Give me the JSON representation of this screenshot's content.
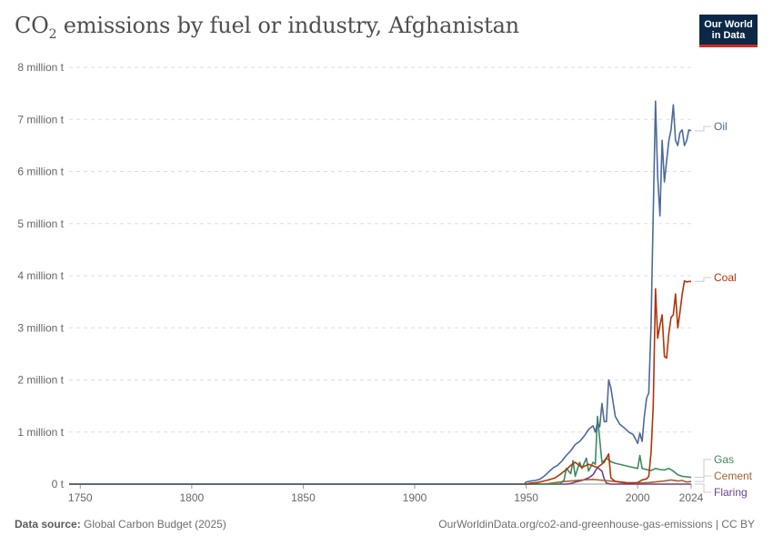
{
  "header": {
    "title_main": "CO",
    "title_sub": "2",
    "title_rest": " emissions by fuel or industry, Afghanistan",
    "logo_line1": "Our World",
    "logo_line2": "in Data"
  },
  "footer": {
    "source_label": "Data source:",
    "source_text": " Global Carbon Budget (2025)",
    "url_text": "OurWorldinData.org/co2-and-greenhouse-gas-emissions | CC BY"
  },
  "chart_data": {
    "type": "line",
    "title": "CO₂ emissions by fuel or industry, Afghanistan",
    "xlim": [
      1745,
      2024
    ],
    "ylim": [
      0,
      8000000
    ],
    "x_ticks": [
      1750,
      1800,
      1850,
      1900,
      1950,
      2000,
      2024
    ],
    "x_tick_labels": [
      "1750",
      "1800",
      "1850",
      "1900",
      "1950",
      "2000",
      "2024"
    ],
    "y_ticks": [
      0,
      1000000,
      2000000,
      3000000,
      4000000,
      5000000,
      6000000,
      7000000,
      8000000
    ],
    "y_tick_labels": [
      "0 t",
      "1 million t",
      "2 million t",
      "3 million t",
      "4 million t",
      "5 million t",
      "6 million t",
      "7 million t",
      "8 million t"
    ],
    "grid": true,
    "legend": "right, inline labels",
    "series": [
      {
        "name": "Oil",
        "color": "#4c6a9c",
        "x": [
          1745,
          1949,
          1950,
          1952,
          1954,
          1956,
          1958,
          1960,
          1962,
          1964,
          1966,
          1968,
          1970,
          1972,
          1974,
          1976,
          1978,
          1980,
          1981,
          1982,
          1983,
          1984,
          1985,
          1986,
          1987,
          1988,
          1990,
          1992,
          1994,
          1996,
          1998,
          2000,
          2001,
          2002,
          2003,
          2004,
          2005,
          2006,
          2007,
          2008,
          2009,
          2010,
          2011,
          2012,
          2013,
          2014,
          2015,
          2016,
          2017,
          2018,
          2019,
          2020,
          2021,
          2022,
          2023,
          2024
        ],
        "y": [
          0,
          0,
          40000,
          60000,
          70000,
          90000,
          150000,
          230000,
          310000,
          360000,
          440000,
          550000,
          640000,
          760000,
          820000,
          920000,
          1050000,
          1120000,
          1000000,
          1180000,
          1100000,
          1550000,
          1200000,
          1200000,
          2000000,
          1850000,
          1300000,
          1150000,
          1080000,
          1000000,
          950000,
          780000,
          980000,
          820000,
          1300000,
          1650000,
          1750000,
          3050000,
          5200000,
          7350000,
          5900000,
          5150000,
          6600000,
          5800000,
          6200000,
          6600000,
          6800000,
          7280000,
          6600000,
          6500000,
          6750000,
          6800000,
          6500000,
          6600000,
          6800000,
          6780000
        ]
      },
      {
        "name": "Coal",
        "color": "#b13507",
        "x": [
          1745,
          1950,
          1952,
          1955,
          1958,
          1960,
          1963,
          1965,
          1968,
          1970,
          1972,
          1975,
          1978,
          1980,
          1982,
          1985,
          1987,
          1988,
          1990,
          1995,
          2000,
          2002,
          2004,
          2005,
          2006,
          2007,
          2008,
          2009,
          2010,
          2011,
          2012,
          2013,
          2014,
          2015,
          2016,
          2017,
          2018,
          2019,
          2020,
          2021,
          2022,
          2023,
          2024
        ],
        "y": [
          0,
          0,
          20000,
          30000,
          60000,
          80000,
          120000,
          180000,
          280000,
          360000,
          420000,
          320000,
          380000,
          350000,
          320000,
          420000,
          580000,
          120000,
          50000,
          20000,
          30000,
          80000,
          100000,
          150000,
          600000,
          1500000,
          3750000,
          2800000,
          3050000,
          3250000,
          2450000,
          2420000,
          2900000,
          3200000,
          3250000,
          3650000,
          3000000,
          3300000,
          3650000,
          3900000,
          3880000,
          3890000,
          3890000
        ]
      },
      {
        "name": "Gas",
        "color": "#3d8a5f",
        "x": [
          1745,
          1965,
          1967,
          1968,
          1970,
          1971,
          1972,
          1974,
          1975,
          1977,
          1978,
          1980,
          1981,
          1982,
          1984,
          1985,
          1986,
          1988,
          1990,
          1995,
          2000,
          2001,
          2002,
          2004,
          2006,
          2008,
          2010,
          2012,
          2014,
          2016,
          2018,
          2020,
          2022,
          2024
        ],
        "y": [
          0,
          0,
          80000,
          300000,
          200000,
          450000,
          150000,
          420000,
          300000,
          500000,
          250000,
          420000,
          380000,
          1300000,
          420000,
          450000,
          500000,
          430000,
          400000,
          350000,
          300000,
          550000,
          300000,
          280000,
          260000,
          300000,
          280000,
          270000,
          300000,
          250000,
          180000,
          150000,
          140000,
          130000
        ]
      },
      {
        "name": "Cement",
        "color": "#a2652c",
        "x": [
          1745,
          1955,
          1960,
          1965,
          1970,
          1975,
          1980,
          1985,
          1990,
          1995,
          2000,
          2005,
          2010,
          2012,
          2015,
          2018,
          2020,
          2022,
          2024
        ],
        "y": [
          0,
          0,
          10000,
          40000,
          60000,
          80000,
          90000,
          70000,
          50000,
          30000,
          20000,
          30000,
          50000,
          60000,
          80000,
          60000,
          70000,
          40000,
          50000
        ]
      },
      {
        "name": "Flaring",
        "color": "#6d3e91",
        "x": [
          1745,
          1968,
          1970,
          1972,
          1975,
          1978,
          1980,
          1982,
          1984,
          1985,
          1986,
          1988,
          1990,
          2024
        ],
        "y": [
          0,
          0,
          10000,
          40000,
          70000,
          120000,
          180000,
          320000,
          250000,
          100000,
          20000,
          0,
          0,
          0
        ]
      }
    ]
  }
}
